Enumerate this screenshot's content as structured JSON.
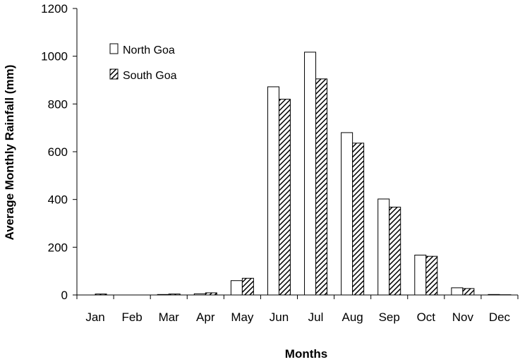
{
  "chart_data": {
    "type": "bar",
    "title": "",
    "xlabel": "Months",
    "ylabel": "Average Monthly Rainfall (mm)",
    "ylim": [
      0,
      1200
    ],
    "yticks": [
      0,
      200,
      400,
      600,
      800,
      1000,
      1200
    ],
    "categories": [
      "Jan",
      "Feb",
      "Mar",
      "Apr",
      "May",
      "Jun",
      "Jul",
      "Aug",
      "Sep",
      "Oct",
      "Nov",
      "Dec"
    ],
    "series": [
      {
        "name": "North Goa",
        "style": "white",
        "values": [
          0,
          0,
          2,
          5,
          60,
          872,
          1017,
          680,
          402,
          167,
          30,
          2
        ]
      },
      {
        "name": "South Goa",
        "style": "hatched",
        "values": [
          4,
          0,
          4,
          9,
          70,
          820,
          905,
          636,
          368,
          162,
          27,
          1
        ]
      }
    ],
    "legend": {
      "placement": "top-left"
    },
    "grid": false,
    "colors": {
      "bar_fill": "#ffffff",
      "hatch": "#000000",
      "axis": "#000000"
    }
  }
}
